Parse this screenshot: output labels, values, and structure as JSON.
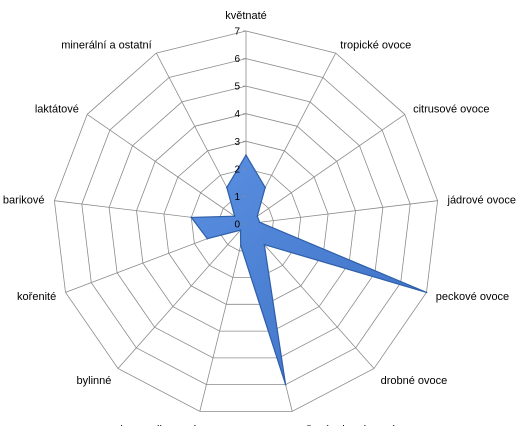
{
  "chart_data": {
    "type": "radar",
    "title": "",
    "categories": [
      "květnaté",
      "tropické ovoce",
      "citrusové ovoce",
      "jádrové ovoce",
      "peckové ovoce",
      "drobné ovoce",
      "sušené a kandované ovoce",
      "karamelizované",
      "bylinné",
      "kořenité",
      "barikové",
      "laktátové",
      "minerální a ostatní"
    ],
    "series": [
      {
        "values": [
          2.5,
          1.5,
          0.5,
          0.5,
          7,
          1,
          6,
          0.8,
          0.3,
          1.5,
          2,
          0.5,
          1.5
        ]
      }
    ],
    "r_axis": {
      "min": 0,
      "max": 7,
      "ticks": [
        0,
        1,
        2,
        3,
        4,
        5,
        6,
        7
      ]
    },
    "grid": true,
    "legend": "none",
    "colors": {
      "fill": "#4a7fd4",
      "stroke": "#2e5fa8",
      "grid": "#8c8c8c"
    }
  }
}
